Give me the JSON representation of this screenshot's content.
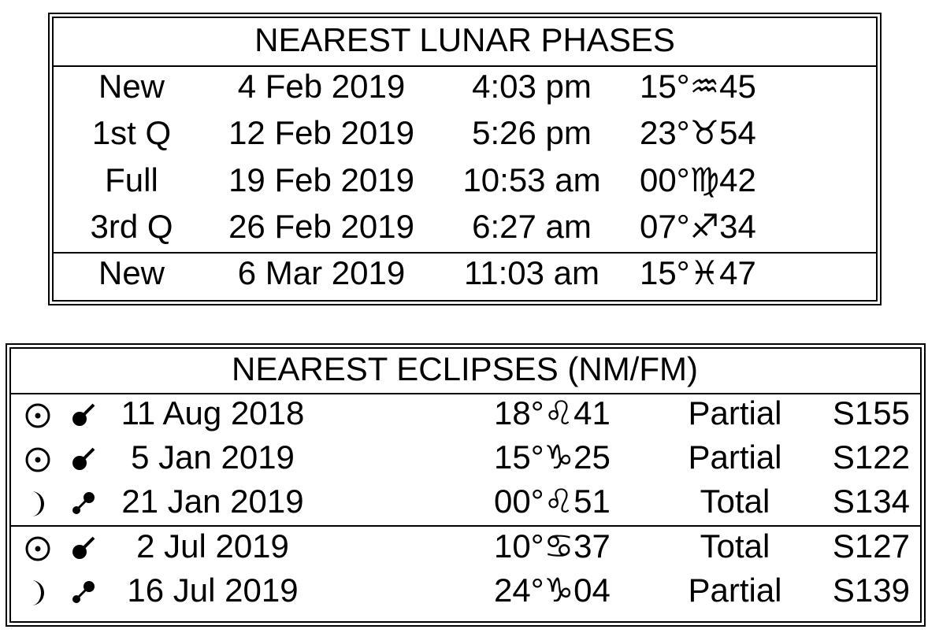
{
  "lunar_phases": {
    "title": "NEAREST LUNAR PHASES",
    "rows": [
      {
        "phase": "New",
        "date": "4 Feb 2019",
        "time": "4:03 pm",
        "position": "15°♒45",
        "color": "#ec7ff0"
      },
      {
        "phase": "1st Q",
        "date": "12 Feb 2019",
        "time": "5:26 pm",
        "position": "23°♉54",
        "color": "#f5b07c"
      },
      {
        "phase": "Full",
        "date": "19 Feb 2019",
        "time": "10:53 am",
        "position": "00°♍42",
        "color": "#6eeaa4"
      },
      {
        "phase": "3rd Q",
        "date": "26 Feb 2019",
        "time": "6:27 am",
        "position": "07°♐34",
        "color": "#7c7ced"
      },
      {
        "phase": "New",
        "date": "6 Mar 2019",
        "time": "11:03 am",
        "position": "15°♓47",
        "color": "#f274b8"
      }
    ]
  },
  "eclipses": {
    "title": "NEAREST ECLIPSES (NM/FM)",
    "rows": [
      {
        "date": "11 Aug 2018",
        "position": "18°♌41",
        "color": "#80ea80",
        "type": "Partial",
        "saros": "S155"
      },
      {
        "date": "5 Jan 2019",
        "position": "15°♑25",
        "color": "#b272ea",
        "type": "Partial",
        "saros": "S122"
      },
      {
        "date": "21 Jan 2019",
        "position": "00°♌51",
        "color": "#80ea80",
        "type": "Total",
        "saros": "S134"
      },
      {
        "date": "2 Jul 2019",
        "position": "10°♋37",
        "color": "#b4ea90",
        "type": "Total",
        "saros": "S127"
      },
      {
        "date": "16 Jul 2019",
        "position": "24°♑04",
        "color": "#b272ea",
        "type": "Partial",
        "saros": "S139"
      }
    ]
  }
}
